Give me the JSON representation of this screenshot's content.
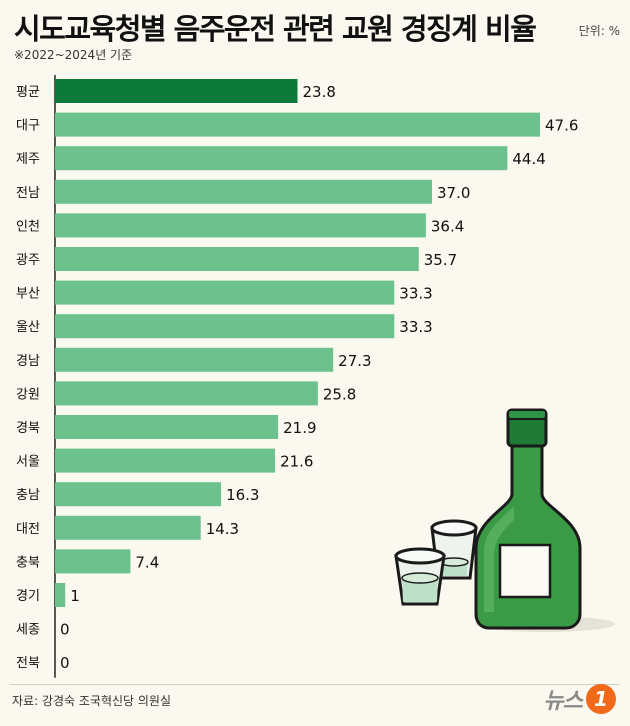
{
  "header": {
    "title": "시도교육청별 음주운전 관련 교원 경징계 비율",
    "unit": "단위: %",
    "subtitle": "※2022~2024년 기준"
  },
  "footer": {
    "source": "자료: 강경숙 조국혁신당 의원실",
    "logo_text": "뉴스",
    "logo_mark": "1"
  },
  "colors": {
    "highlight": "#0e7a3a",
    "bar": "#6cc18d",
    "axis": "#222222"
  },
  "illustration": {
    "icon": "soju-bottle-and-shot-glasses"
  },
  "chart_data": {
    "type": "bar",
    "orientation": "horizontal",
    "title": "시도교육청별 음주운전 관련 교원 경징계 비율",
    "subtitle": "※2022~2024년 기준",
    "unit": "%",
    "categories": [
      "평균",
      "대구",
      "제주",
      "전남",
      "인천",
      "광주",
      "부산",
      "울산",
      "경남",
      "강원",
      "경북",
      "서울",
      "충남",
      "대전",
      "충북",
      "경기",
      "세종",
      "전북"
    ],
    "values": [
      23.8,
      47.6,
      44.4,
      37.0,
      36.4,
      35.7,
      33.3,
      33.3,
      27.3,
      25.8,
      21.9,
      21.6,
      16.3,
      14.3,
      7.4,
      1,
      0,
      0
    ],
    "value_labels": [
      "23.8",
      "47.6",
      "44.4",
      "37.0",
      "36.4",
      "35.7",
      "33.3",
      "33.3",
      "27.3",
      "25.8",
      "21.9",
      "21.6",
      "16.3",
      "14.3",
      "7.4",
      "1",
      "0",
      "0"
    ],
    "highlighted_category": "평균",
    "xlim": [
      0,
      47.6
    ],
    "grid": false,
    "legend": "none"
  }
}
